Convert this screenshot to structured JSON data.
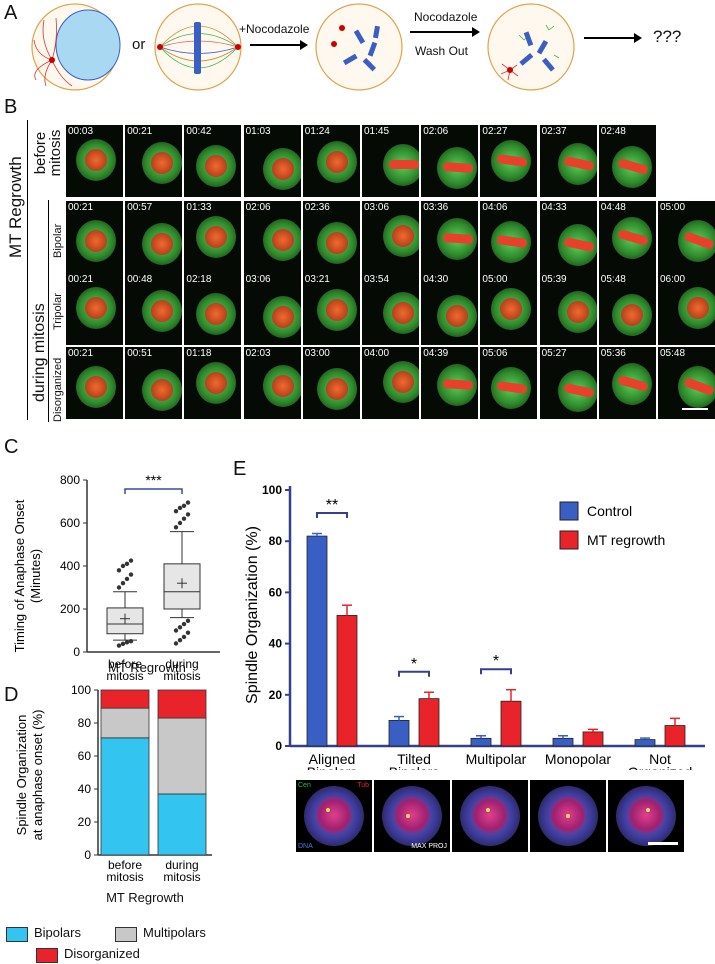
{
  "panel_labels": {
    "a": "A",
    "b": "B",
    "c": "C",
    "d": "D",
    "e": "E"
  },
  "panel_a": {
    "or_text": "or",
    "nocodazole_add": "+Nocodazole",
    "washout_line1": "Nocodazole",
    "washout_line2": "Wash Out",
    "result": "???"
  },
  "panel_b": {
    "group_label": "MT Regrowth",
    "before_label": "before mitosis",
    "during_label": "during mitosis",
    "row_labels": [
      "Bipolar",
      "Tripolar",
      "Disorganized"
    ],
    "rows": [
      {
        "name": "before",
        "times": [
          "00:03",
          "00:21",
          "00:42",
          "01:03",
          "01:24",
          "01:45",
          "02:06",
          "02:27",
          "02:37",
          "02:48"
        ]
      },
      {
        "name": "bipolar",
        "times": [
          "00:21",
          "00:57",
          "01:33",
          "02:06",
          "02:36",
          "03:06",
          "03:36",
          "04:06",
          "04:33",
          "04:48",
          "05:00"
        ]
      },
      {
        "name": "tripolar",
        "times": [
          "00:21",
          "00:48",
          "02:18",
          "03:06",
          "03:21",
          "03:54",
          "04:30",
          "05:00",
          "05:39",
          "05:48",
          "06:00"
        ]
      },
      {
        "name": "disorganized",
        "times": [
          "00:21",
          "00:51",
          "01:18",
          "02:03",
          "03:00",
          "04:00",
          "04:39",
          "05:06",
          "05:27",
          "05:36",
          "05:48"
        ]
      }
    ]
  },
  "chart_data": [
    {
      "id": "C",
      "type": "box",
      "ylabel": "Timing of Anaphase Onset (Minutes)",
      "xlabel": "MT Regrowth",
      "categories": [
        "before mitosis",
        "during mitosis"
      ],
      "ylim": [
        0,
        800
      ],
      "yticks": [
        0,
        200,
        400,
        600,
        800
      ],
      "significance": "***",
      "boxes": [
        {
          "whisker_low": 55,
          "q1": 85,
          "median": 130,
          "q3": 205,
          "whisker_high": 280,
          "mean": 155,
          "outliers": [
            30,
            38,
            45,
            50,
            300,
            320,
            340,
            360,
            380,
            400,
            410,
            425
          ]
        },
        {
          "whisker_low": 160,
          "q1": 200,
          "median": 280,
          "q3": 410,
          "whisker_high": 560,
          "mean": 320,
          "outliers": [
            40,
            55,
            70,
            90,
            100,
            115,
            130,
            145,
            580,
            600,
            620,
            640,
            655,
            670,
            680,
            695
          ]
        }
      ]
    },
    {
      "id": "D",
      "type": "stacked_bar",
      "ylabel": "Spindle Organization at anaphase onset (%)",
      "xlabel": "MT Regrowth",
      "categories": [
        "before mitosis",
        "during mitosis"
      ],
      "ylim": [
        0,
        100
      ],
      "yticks": [
        0,
        20,
        40,
        60,
        80,
        100
      ],
      "series": [
        {
          "name": "Bipolars",
          "color": "#33c5ef",
          "values": [
            71,
            37
          ]
        },
        {
          "name": "Multipolars",
          "color": "#c8c8c8",
          "values": [
            18,
            46
          ]
        },
        {
          "name": "Disorganized",
          "color": "#e8232a",
          "values": [
            11,
            17
          ]
        }
      ]
    },
    {
      "id": "E",
      "type": "bar",
      "ylabel": "Spindle Organization (%)",
      "categories": [
        "Aligned Bipolars",
        "Tilted Bipolars",
        "Multipolar",
        "Monopolar",
        "Not Organized"
      ],
      "ylim": [
        0,
        100
      ],
      "yticks": [
        0,
        20,
        40,
        60,
        80,
        100
      ],
      "series": [
        {
          "name": "Control",
          "color": "#3a5fc4",
          "values": [
            82,
            10,
            3,
            3,
            2.5
          ],
          "errors": [
            1,
            1.5,
            1,
            1,
            0.6
          ]
        },
        {
          "name": "MT regrowth",
          "color": "#e8232a",
          "values": [
            51,
            18.5,
            17.5,
            5.5,
            8
          ],
          "errors": [
            4,
            2.5,
            4.5,
            1,
            2.8
          ]
        }
      ],
      "significance": [
        {
          "index": 0,
          "mark": "**"
        },
        {
          "index": 1,
          "mark": "*"
        },
        {
          "index": 2,
          "mark": "*"
        }
      ]
    }
  ],
  "panel_e_images": {
    "cen_label": "Cen",
    "tub_label": "Tub",
    "dna_label": "DNA",
    "max_proj": "MAX PROJ"
  }
}
